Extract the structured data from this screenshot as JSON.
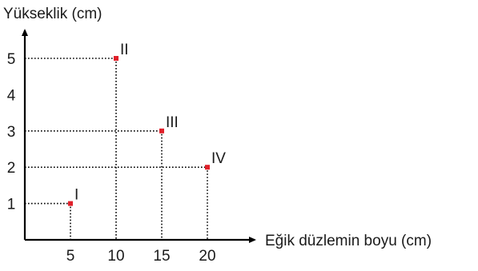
{
  "chart_data": {
    "type": "scatter",
    "xlabel": "Eğik düzlemin boyu (cm)",
    "ylabel": "Yükseklik (cm)",
    "x_ticks": [
      5,
      10,
      15,
      20
    ],
    "y_ticks": [
      1,
      2,
      3,
      4,
      5
    ],
    "points": [
      {
        "label": "I",
        "x": 5,
        "y": 1
      },
      {
        "label": "II",
        "x": 10,
        "y": 5
      },
      {
        "label": "III",
        "x": 15,
        "y": 3
      },
      {
        "label": "IV",
        "x": 20,
        "y": 2
      }
    ],
    "guide_lines": "dotted",
    "colors": {
      "axis": "#000000",
      "point": "#e0202a",
      "guide": "#000000"
    }
  }
}
